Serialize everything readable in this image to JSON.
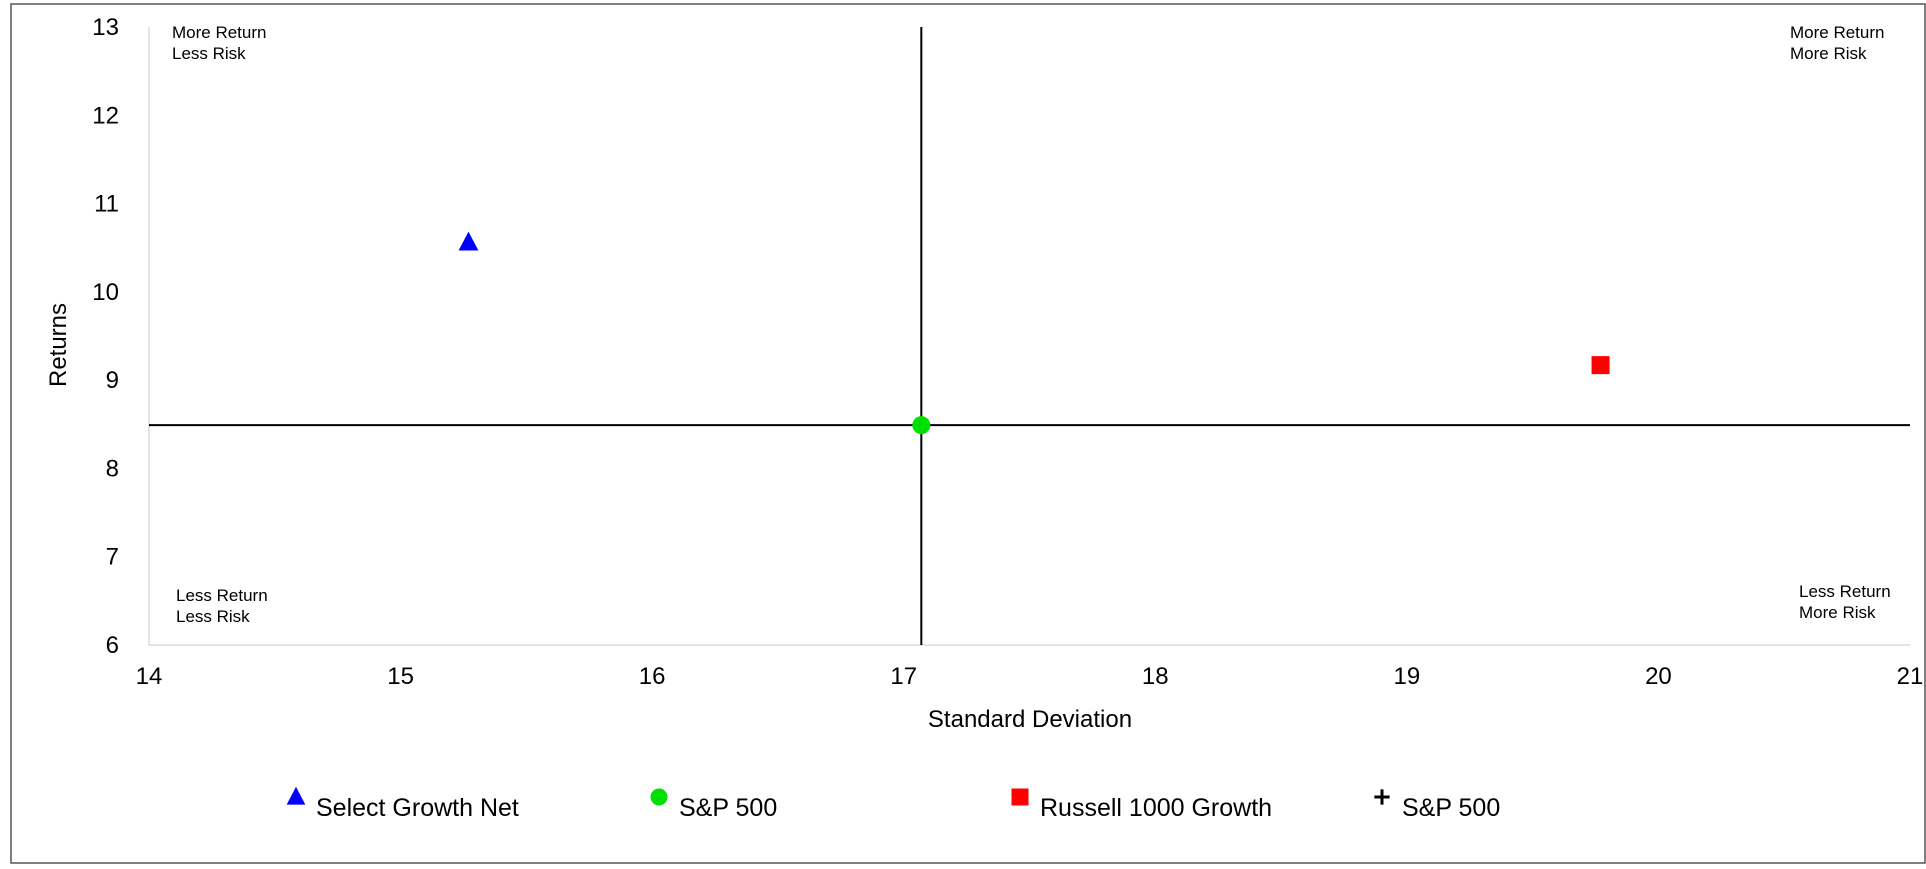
{
  "chart_data": {
    "type": "scatter",
    "title": "",
    "xlabel": "Standard Deviation",
    "ylabel": "Returns",
    "xlim": [
      14,
      21
    ],
    "ylim": [
      6,
      13
    ],
    "xticks": [
      "14",
      "15",
      "16",
      "17",
      "18",
      "19",
      "20",
      "21"
    ],
    "yticks": [
      "6",
      "7",
      "8",
      "9",
      "10",
      "11",
      "12",
      "13"
    ],
    "grid": false,
    "crosshair": {
      "x": 17.07,
      "y": 8.49
    },
    "quadrant_labels": {
      "top_left": [
        "More Return",
        "Less Risk"
      ],
      "top_right": [
        "More Return",
        "More Risk"
      ],
      "bottom_left": [
        "Less Return",
        "Less Risk"
      ],
      "bottom_right": [
        "Less Return",
        "More Risk"
      ]
    },
    "legend_position": "bottom",
    "series": [
      {
        "name": "Select Growth Net",
        "marker": "triangle",
        "color": "#0000ff",
        "x": 15.27,
        "y": 10.56
      },
      {
        "name": "S&P 500",
        "marker": "circle",
        "color": "#00e000",
        "x": 17.07,
        "y": 8.49
      },
      {
        "name": "Russell 1000 Growth",
        "marker": "square",
        "color": "#ff0000",
        "x": 19.77,
        "y": 9.17
      },
      {
        "name": "S&P 500",
        "marker": "plus",
        "color": "#000000",
        "x": 17.07,
        "y": 8.49
      }
    ]
  }
}
